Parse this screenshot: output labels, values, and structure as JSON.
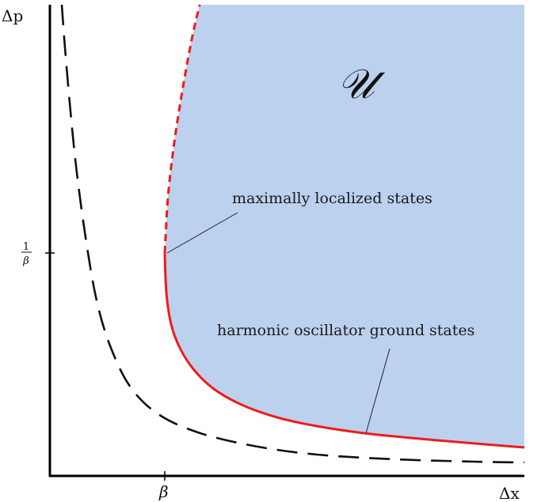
{
  "axes": {
    "x_label": "Δx",
    "y_label": "Δp"
  },
  "ticks": {
    "x_tick": "β",
    "y_tick_numerator": "1",
    "y_tick_denominator": "β"
  },
  "region_label": "𝒰",
  "annotations": {
    "max_localized": "maximally localized states",
    "harmonic_ground": "harmonic oscillator ground states"
  },
  "colors": {
    "region_fill": "#bcd1ee",
    "boundary": "#ee1c1c",
    "hyperbola": "#111111",
    "axes": "#000000"
  }
}
